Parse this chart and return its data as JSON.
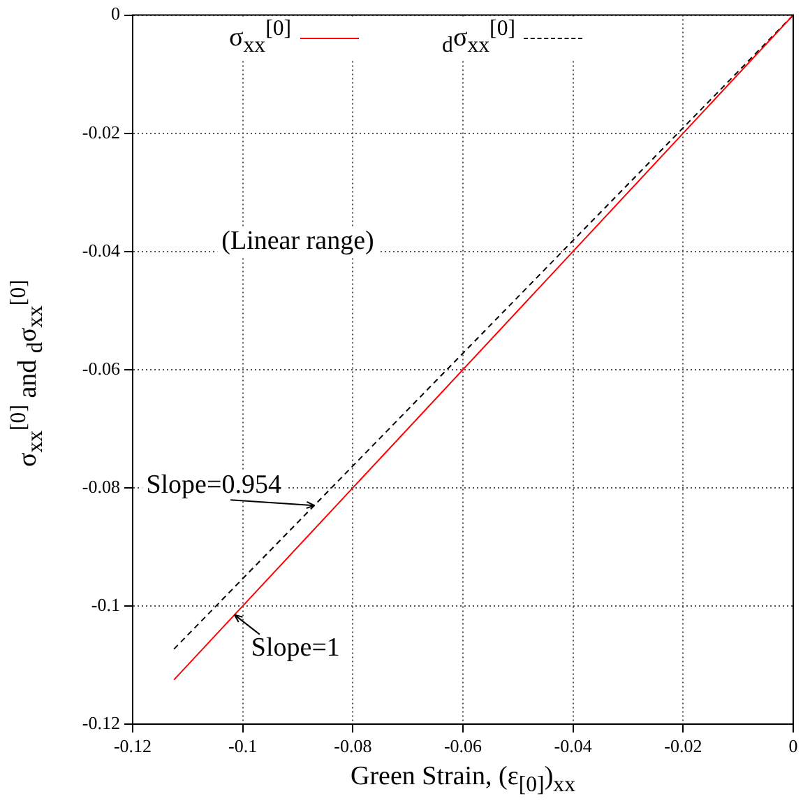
{
  "chart_data": {
    "type": "line",
    "xlabel": "Green Strain,  (ε$_{[0]}$)$_{xx}$",
    "ylabel": "σ$_{xx}$$^{[0]}$  and  $_{d}$σ$_{xx}$$^{[0]}$",
    "x": [
      -0.1125,
      0
    ],
    "series": [
      {
        "name": "σ$_{xx}$$^{[0]}$",
        "color": "#ff0000",
        "values": [
          -0.1125,
          0
        ],
        "line_style": "solid"
      },
      {
        "name": "$_{d}$σ$_{xx}$$^{[0]}$",
        "color": "#000000",
        "values": [
          -0.1073,
          0
        ],
        "line_style": "dashed"
      }
    ],
    "xlim": [
      -0.12,
      0
    ],
    "ylim": [
      -0.12,
      0
    ],
    "xticks": [
      -0.12,
      -0.1,
      -0.08,
      -0.06,
      -0.04,
      -0.02,
      0
    ],
    "yticks": [
      -0.12,
      -0.1,
      -0.08,
      -0.06,
      -0.04,
      -0.02,
      0
    ],
    "grid": true,
    "legend": "top",
    "marker": "none",
    "annotations": [
      "(Linear range)",
      {
        "text": "Slope=0.954",
        "x": -0.087,
        "y": -0.083
      },
      {
        "text": "Slope=1",
        "x": -0.1015,
        "y": -0.1015
      }
    ]
  }
}
